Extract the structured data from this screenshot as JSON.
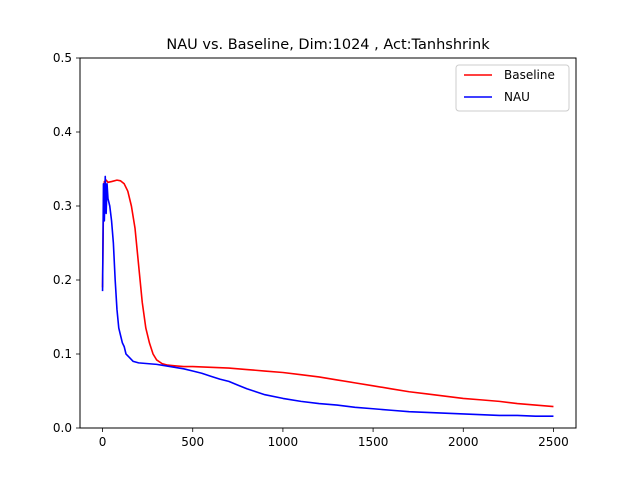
{
  "chart_data": {
    "type": "line",
    "title": "NAU vs. Baseline, Dim:1024 , Act:Tanhshrink",
    "xlabel": "",
    "ylabel": "",
    "xlim": [
      -125,
      2625
    ],
    "ylim": [
      0.0,
      0.5
    ],
    "x_ticks": [
      0,
      500,
      1000,
      1500,
      2000,
      2500
    ],
    "x_tick_labels": [
      "0",
      "500",
      "1000",
      "1500",
      "2000",
      "2500"
    ],
    "y_ticks": [
      0.0,
      0.1,
      0.2,
      0.3,
      0.4,
      0.5
    ],
    "y_tick_labels": [
      "0.0",
      "0.1",
      "0.2",
      "0.3",
      "0.4",
      "0.5"
    ],
    "grid": false,
    "legend_position": "top-right",
    "series": [
      {
        "name": "Baseline",
        "color": "#ff0000",
        "x": [
          0,
          5,
          10,
          20,
          30,
          50,
          80,
          100,
          120,
          140,
          160,
          180,
          200,
          220,
          240,
          260,
          280,
          300,
          330,
          360,
          400,
          450,
          500,
          600,
          700,
          800,
          900,
          1000,
          1100,
          1200,
          1300,
          1400,
          1500,
          1600,
          1700,
          1800,
          1900,
          2000,
          2100,
          2200,
          2300,
          2400,
          2500
        ],
        "y": [
          0.19,
          0.3,
          0.333,
          0.335,
          0.332,
          0.333,
          0.335,
          0.334,
          0.33,
          0.32,
          0.3,
          0.27,
          0.22,
          0.17,
          0.135,
          0.115,
          0.1,
          0.092,
          0.087,
          0.085,
          0.084,
          0.083,
          0.083,
          0.082,
          0.081,
          0.079,
          0.077,
          0.075,
          0.072,
          0.069,
          0.065,
          0.061,
          0.057,
          0.053,
          0.049,
          0.046,
          0.043,
          0.04,
          0.038,
          0.036,
          0.033,
          0.031,
          0.029
        ]
      },
      {
        "name": "NAU",
        "color": "#0000ff",
        "x": [
          0,
          5,
          10,
          15,
          20,
          25,
          30,
          40,
          50,
          60,
          70,
          80,
          90,
          100,
          110,
          120,
          130,
          150,
          170,
          200,
          250,
          300,
          350,
          400,
          450,
          500,
          550,
          600,
          650,
          700,
          750,
          800,
          850,
          900,
          1000,
          1100,
          1200,
          1300,
          1400,
          1500,
          1600,
          1700,
          1800,
          1900,
          2000,
          2100,
          2200,
          2300,
          2400,
          2500
        ],
        "y": [
          0.185,
          0.33,
          0.28,
          0.34,
          0.29,
          0.33,
          0.31,
          0.3,
          0.28,
          0.25,
          0.2,
          0.16,
          0.135,
          0.125,
          0.115,
          0.11,
          0.1,
          0.095,
          0.09,
          0.088,
          0.087,
          0.086,
          0.084,
          0.082,
          0.08,
          0.077,
          0.074,
          0.07,
          0.066,
          0.063,
          0.058,
          0.053,
          0.049,
          0.045,
          0.04,
          0.036,
          0.033,
          0.031,
          0.028,
          0.026,
          0.024,
          0.022,
          0.021,
          0.02,
          0.019,
          0.018,
          0.017,
          0.017,
          0.016,
          0.016
        ]
      }
    ]
  }
}
